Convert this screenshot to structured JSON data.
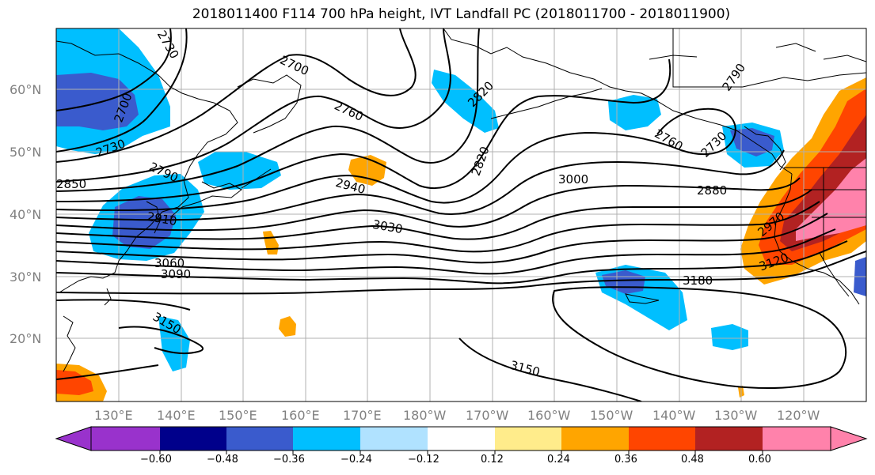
{
  "title": "2018011400 F114 700 hPa height, IVT Landfall PC (2018011700 - 2018011900)",
  "lat_labels": [
    "60°N",
    "50°N",
    "40°N",
    "30°N",
    "20°N"
  ],
  "lon_labels": [
    "130°E",
    "140°E",
    "150°E",
    "160°E",
    "170°E",
    "180°W",
    "170°W",
    "160°W",
    "150°W",
    "140°W",
    "130°W",
    "120°W"
  ],
  "contour_labels": [
    "2730",
    "2700",
    "2730",
    "2700",
    "2820",
    "2760",
    "2820",
    "2760",
    "2730",
    "2790",
    "2850",
    "2790",
    "2910",
    "3060",
    "3090",
    "2940",
    "3000",
    "3030",
    "2880",
    "2970",
    "3120",
    "3180",
    "3150",
    "3150"
  ],
  "colorbar": {
    "colors": [
      "#9932cc",
      "#00008b",
      "#3a5bcd",
      "#00bfff",
      "#b0e2ff",
      "#ffffff",
      "#ffec8b",
      "#ffa500",
      "#ff4500",
      "#b22222",
      "#ff82ab"
    ],
    "tick_labels": [
      "−0.60",
      "−0.48",
      "−0.36",
      "−0.24",
      "−0.12",
      "0.12",
      "0.24",
      "0.36",
      "0.48",
      "0.60"
    ]
  },
  "colors": {
    "grid": "#b0b0b0",
    "contour": "#000000",
    "coast": "#000000"
  }
}
